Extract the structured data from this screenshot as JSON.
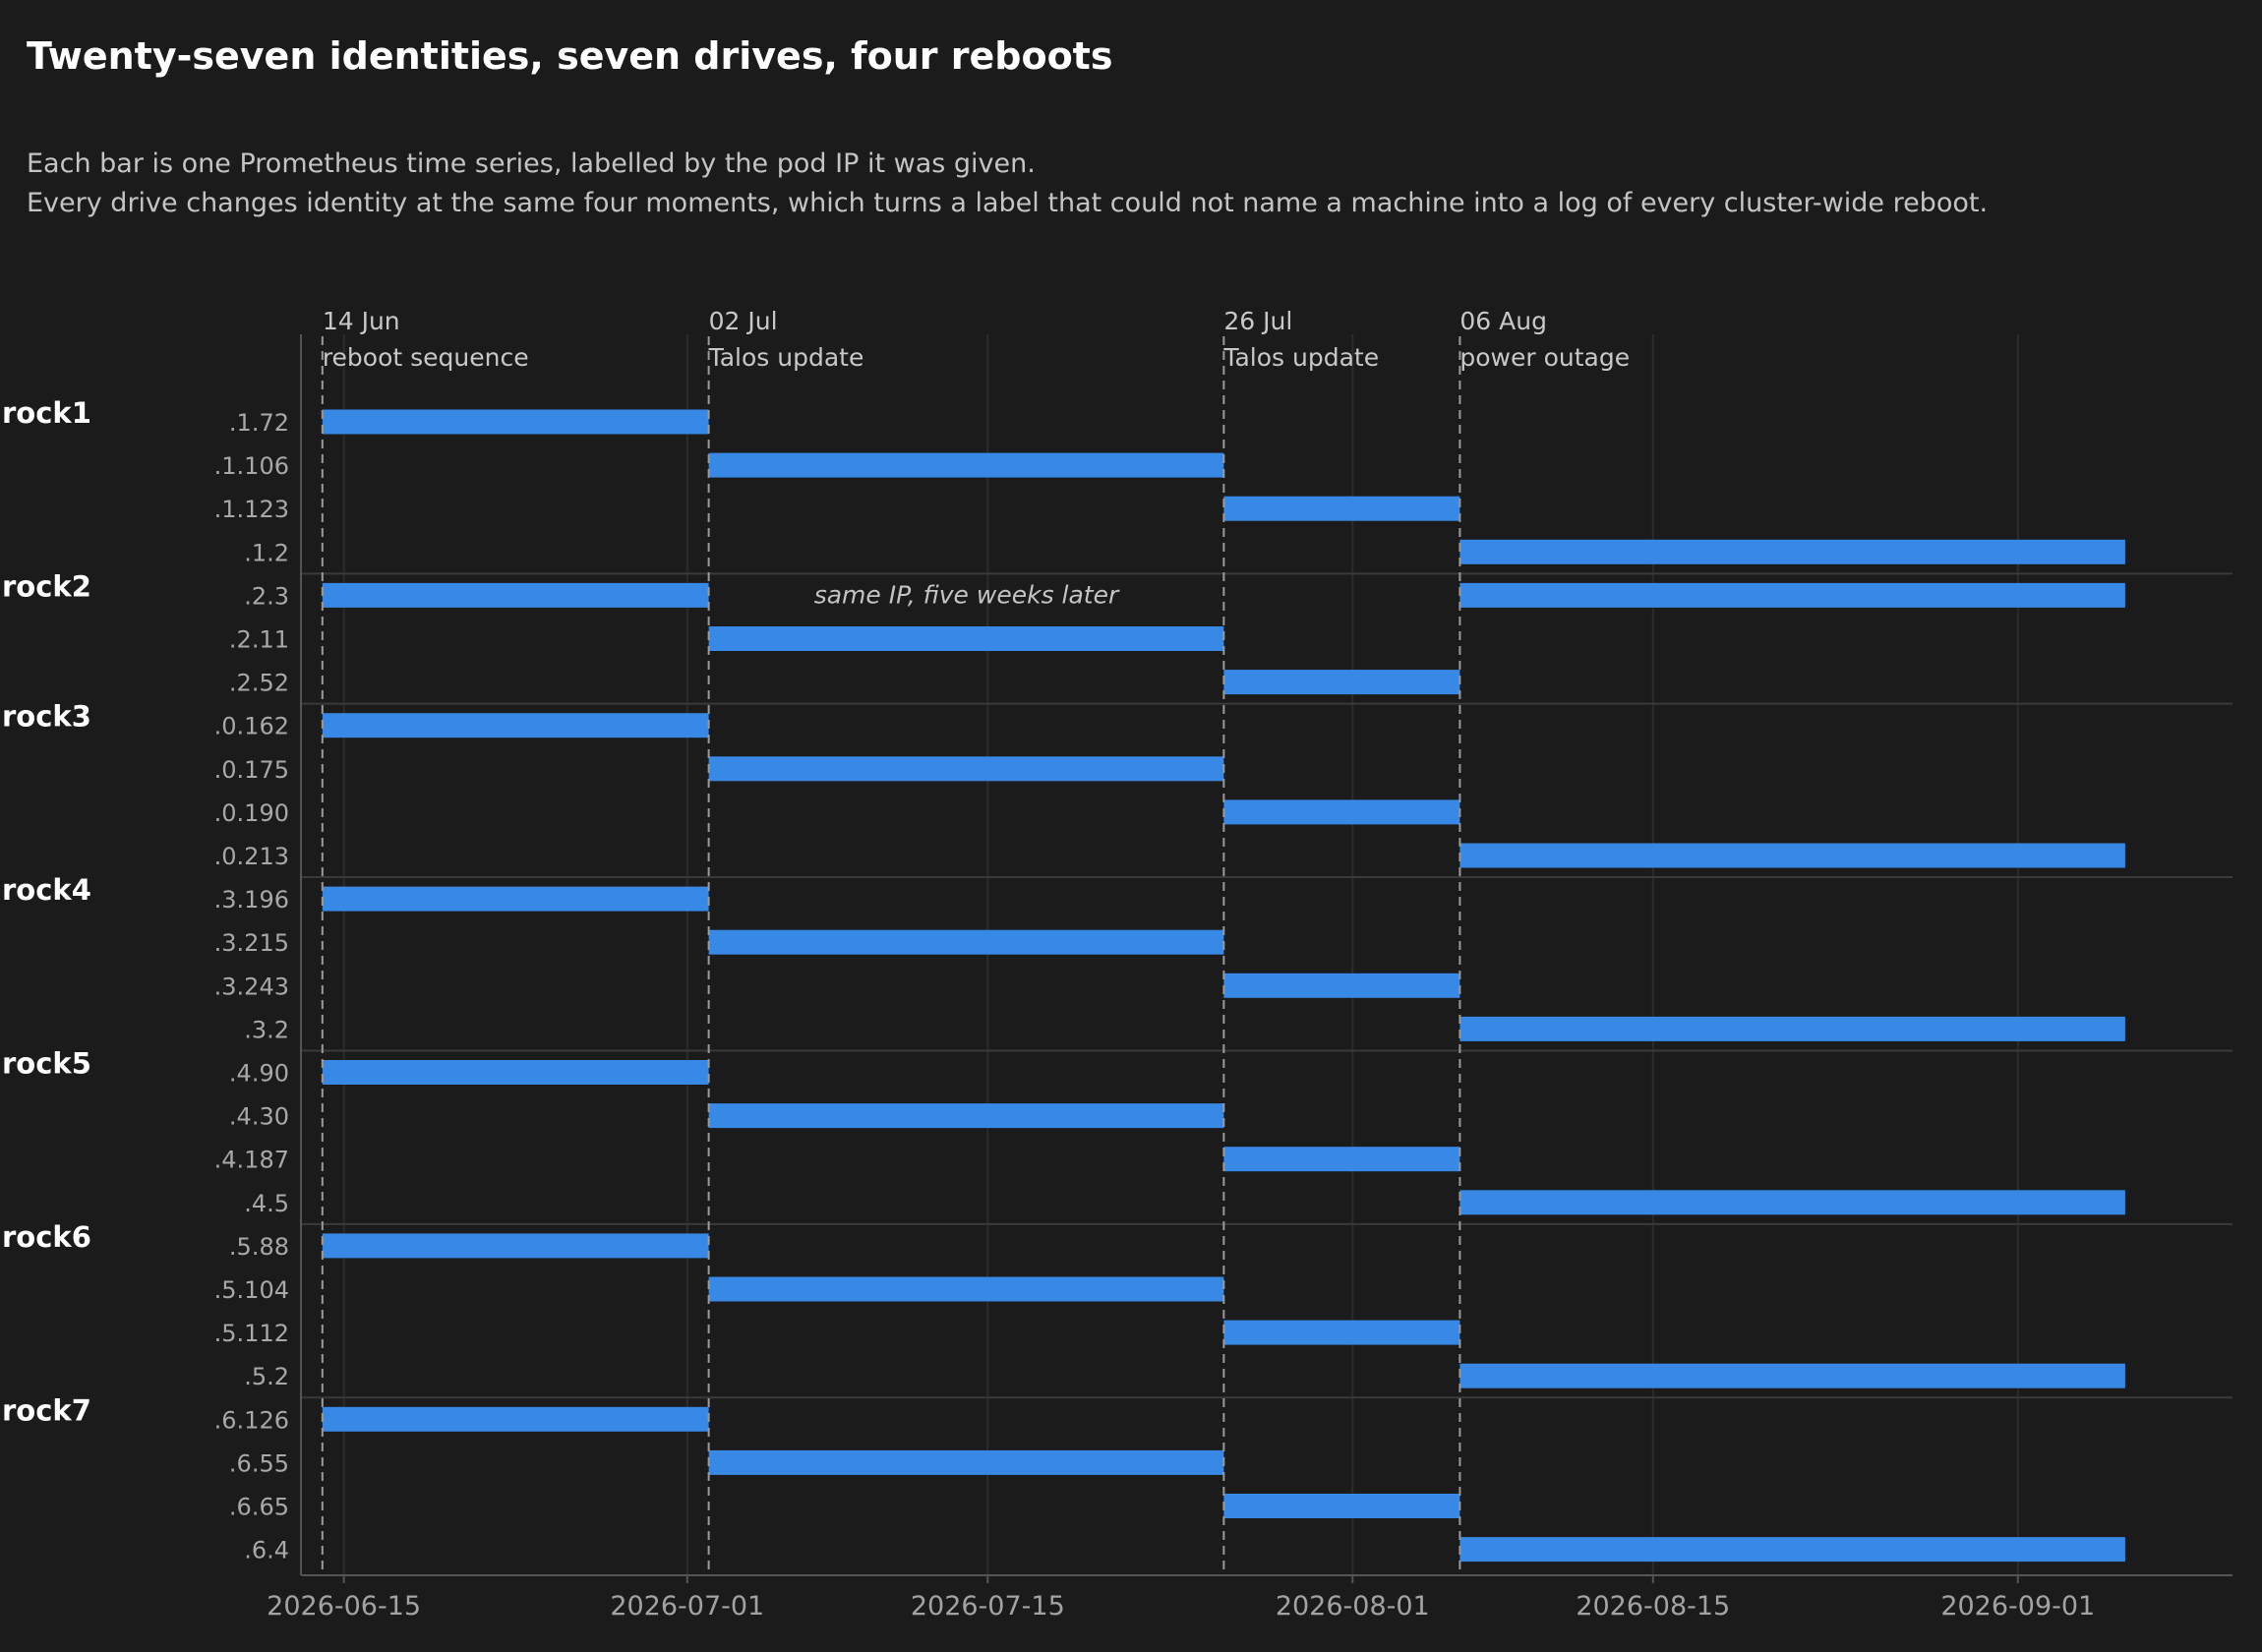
{
  "title": "Twenty-seven identities, seven drives, four reboots",
  "subtitle_lines": [
    "Each bar is one Prometheus time series, labelled by the pod IP it was given.",
    "Every drive changes identity at the same four moments, which turns a label that could not name a machine into a log of every cluster-wide reboot."
  ],
  "colors": {
    "background": "#1b1b1b",
    "bar": "#3888e6",
    "grid": "#2c2c2c",
    "separator": "#3a3a3a",
    "event_line": "#9a9a9a",
    "axis": "#555555"
  },
  "chart_data": {
    "type": "gantt",
    "title": "Twenty-seven identities, seven drives, four reboots",
    "x_axis": {
      "type": "date",
      "range": [
        "2026-06-13",
        "2026-09-11"
      ],
      "ticks": [
        "2026-06-15",
        "2026-07-01",
        "2026-07-15",
        "2026-08-01",
        "2026-08-15",
        "2026-09-01"
      ]
    },
    "grid": true,
    "events": [
      {
        "date": "2026-06-14",
        "date_label": "14 Jun",
        "label": "reboot sequence"
      },
      {
        "date": "2026-07-02",
        "date_label": "02 Jul",
        "label": "Talos update"
      },
      {
        "date": "2026-07-26",
        "date_label": "26 Jul",
        "label": "Talos update"
      },
      {
        "date": "2026-08-06",
        "date_label": "06 Aug",
        "label": "power outage"
      }
    ],
    "series_end": "2026-09-06",
    "annotations": [
      {
        "text": "same IP, five weeks later",
        "row": ".2.3",
        "date": "2026-07-14"
      }
    ],
    "groups": [
      {
        "name": "rock1",
        "rows": [
          {
            "label": ".1.72",
            "start": "2026-06-14",
            "end": "2026-07-02"
          },
          {
            "label": ".1.106",
            "start": "2026-07-02",
            "end": "2026-07-26"
          },
          {
            "label": ".1.123",
            "start": "2026-07-26",
            "end": "2026-08-06"
          },
          {
            "label": ".1.2",
            "start": "2026-08-06",
            "end": "2026-09-06"
          }
        ]
      },
      {
        "name": "rock2",
        "rows": [
          {
            "label": ".2.3",
            "segments": [
              {
                "start": "2026-06-14",
                "end": "2026-07-02"
              },
              {
                "start": "2026-08-06",
                "end": "2026-09-06"
              }
            ]
          },
          {
            "label": ".2.11",
            "start": "2026-07-02",
            "end": "2026-07-26"
          },
          {
            "label": ".2.52",
            "start": "2026-07-26",
            "end": "2026-08-06"
          }
        ]
      },
      {
        "name": "rock3",
        "rows": [
          {
            "label": ".0.162",
            "start": "2026-06-14",
            "end": "2026-07-02"
          },
          {
            "label": ".0.175",
            "start": "2026-07-02",
            "end": "2026-07-26"
          },
          {
            "label": ".0.190",
            "start": "2026-07-26",
            "end": "2026-08-06"
          },
          {
            "label": ".0.213",
            "start": "2026-08-06",
            "end": "2026-09-06"
          }
        ]
      },
      {
        "name": "rock4",
        "rows": [
          {
            "label": ".3.196",
            "start": "2026-06-14",
            "end": "2026-07-02"
          },
          {
            "label": ".3.215",
            "start": "2026-07-02",
            "end": "2026-07-26"
          },
          {
            "label": ".3.243",
            "start": "2026-07-26",
            "end": "2026-08-06"
          },
          {
            "label": ".3.2",
            "start": "2026-08-06",
            "end": "2026-09-06"
          }
        ]
      },
      {
        "name": "rock5",
        "rows": [
          {
            "label": ".4.90",
            "start": "2026-06-14",
            "end": "2026-07-02"
          },
          {
            "label": ".4.30",
            "start": "2026-07-02",
            "end": "2026-07-26"
          },
          {
            "label": ".4.187",
            "start": "2026-07-26",
            "end": "2026-08-06"
          },
          {
            "label": ".4.5",
            "start": "2026-08-06",
            "end": "2026-09-06"
          }
        ]
      },
      {
        "name": "rock6",
        "rows": [
          {
            "label": ".5.88",
            "start": "2026-06-14",
            "end": "2026-07-02"
          },
          {
            "label": ".5.104",
            "start": "2026-07-02",
            "end": "2026-07-26"
          },
          {
            "label": ".5.112",
            "start": "2026-07-26",
            "end": "2026-08-06"
          },
          {
            "label": ".5.2",
            "start": "2026-08-06",
            "end": "2026-09-06"
          }
        ]
      },
      {
        "name": "rock7",
        "rows": [
          {
            "label": ".6.126",
            "start": "2026-06-14",
            "end": "2026-07-02"
          },
          {
            "label": ".6.55",
            "start": "2026-07-02",
            "end": "2026-07-26"
          },
          {
            "label": ".6.65",
            "start": "2026-07-26",
            "end": "2026-08-06"
          },
          {
            "label": ".6.4",
            "start": "2026-08-06",
            "end": "2026-09-06"
          }
        ]
      }
    ]
  }
}
